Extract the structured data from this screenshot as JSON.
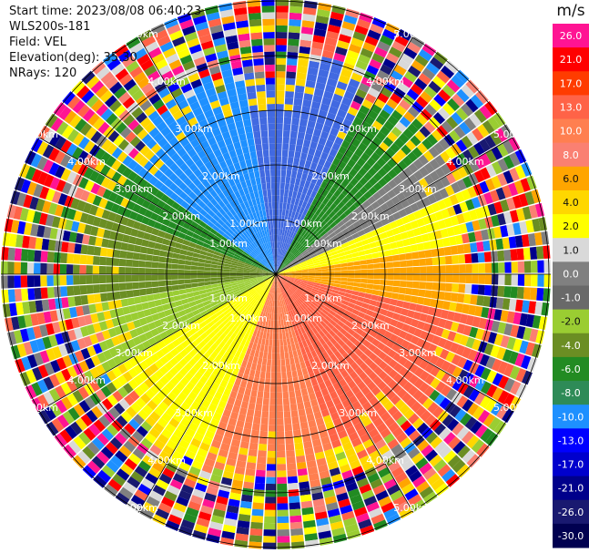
{
  "header": {
    "start_time": "Start time: 2023/08/08 06:40:23",
    "instrument": "WLS200s-181",
    "field": "Field: VEL",
    "elevation": "Elevation(deg): 35.30",
    "nrays": "NRays: 120"
  },
  "range_labels": [
    "1.00km",
    "2.00km",
    "3.00km",
    "4.00km",
    "5.00km"
  ],
  "colorbar": {
    "unit": "m/s",
    "ticks": [
      "26.0",
      "21.0",
      "17.0",
      "13.0",
      "10.0",
      "8.0",
      "6.0",
      "4.0",
      "2.0",
      "1.0",
      "0.0",
      "-1.0",
      "-2.0",
      "-4.0",
      "-6.0",
      "-8.0",
      "-10.0",
      "-13.0",
      "-17.0",
      "-21.0",
      "-26.0",
      "-30.0"
    ],
    "colors": [
      "#ff1493",
      "#ff0000",
      "#ff3c00",
      "#ff6347",
      "#ff7f50",
      "#fa8072",
      "#ffa500",
      "#ffd700",
      "#ffff00",
      "#d9d9d9",
      "#808080",
      "#696969",
      "#9acd32",
      "#6b8e23",
      "#228b22",
      "#2e8b57",
      "#1e90ff",
      "#0000ff",
      "#0000cd",
      "#00008b",
      "#191970",
      "#000050"
    ]
  }
}
